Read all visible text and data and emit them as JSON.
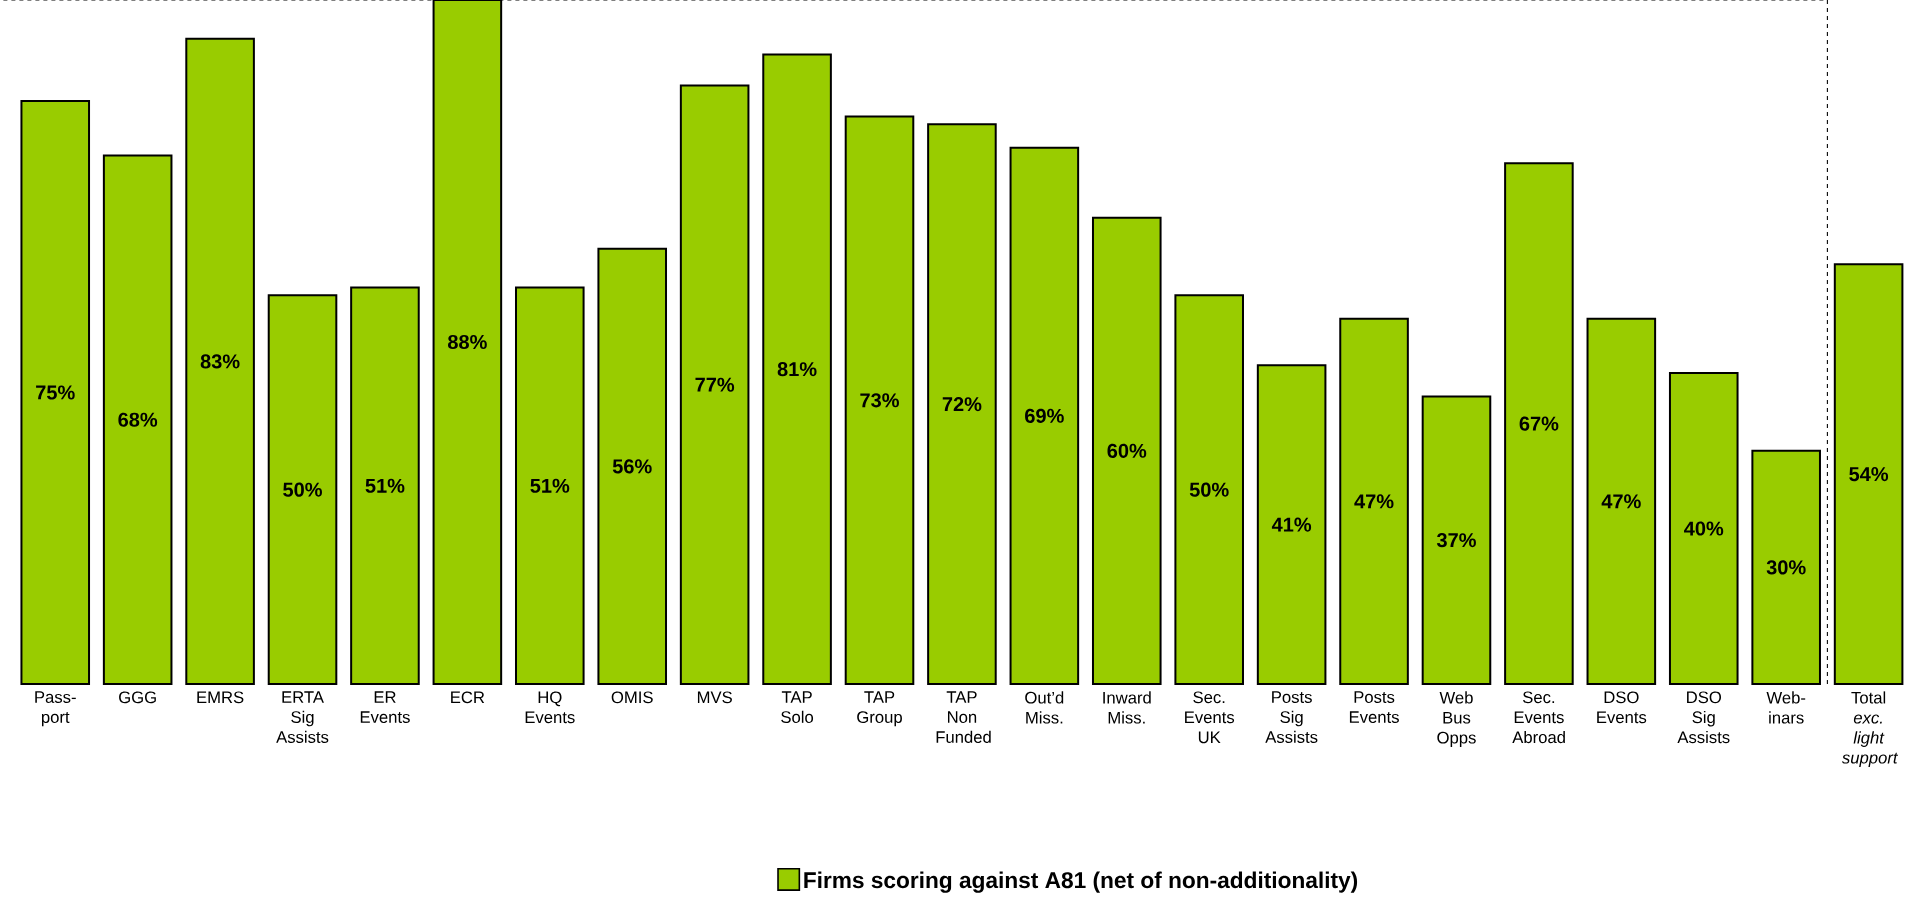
{
  "chart_data": {
    "type": "bar",
    "categories": [
      "Pass-port",
      "GGG",
      "EMRS",
      "ERTA Sig Assists",
      "ER Events",
      "ECR",
      "HQ Events",
      "OMIS",
      "MVS",
      "TAP Solo",
      "TAP Group",
      "TAP Non Funded",
      "Out’d Miss.",
      "Inward Miss.",
      "Sec. Events UK",
      "Posts Sig Assists",
      "Posts Events",
      "Web Bus Opps",
      "Sec. Events Abroad",
      "DSO Events",
      "DSO Sig Assists",
      "Web-inars",
      "Total *exc. light support*"
    ],
    "series": [
      {
        "name": "Firms scoring against A81 (net of non-additionality)",
        "color": "#99cc00",
        "values": [
          75,
          68,
          83,
          50,
          51,
          88,
          51,
          56,
          77,
          81,
          73,
          72,
          69,
          60,
          50,
          41,
          47,
          37,
          67,
          47,
          40,
          30,
          54
        ],
        "value_labels": [
          "75%",
          "68%",
          "83%",
          "50%",
          "51%",
          "88%",
          "51%",
          "56%",
          "77%",
          "81%",
          "73%",
          "72%",
          "69%",
          "60%",
          "50%",
          "41%",
          "47%",
          "37%",
          "67%",
          "47%",
          "40%",
          "30%",
          "54%"
        ]
      }
    ],
    "legend": "bottom",
    "grid": false
  }
}
